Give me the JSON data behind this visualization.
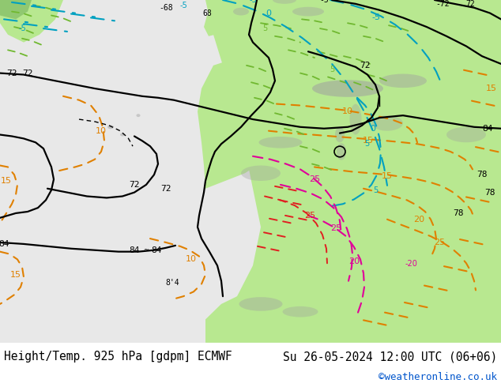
{
  "title_left": "Height/Temp. 925 hPa [gdpm] ECMWF",
  "title_right": "Su 26-05-2024 12:00 UTC (06+06)",
  "credit": "©weatheronline.co.uk",
  "bg_color": "#ffffff",
  "ocean_color": "#e8e8e8",
  "land_color": "#b8e890",
  "terrain_color": "#a0a0a0",
  "title_fontsize": 10.5,
  "credit_fontsize": 9,
  "credit_color": "#0055cc",
  "text_color": "#000000",
  "fig_width": 6.34,
  "fig_height": 4.9,
  "dpi": 100
}
